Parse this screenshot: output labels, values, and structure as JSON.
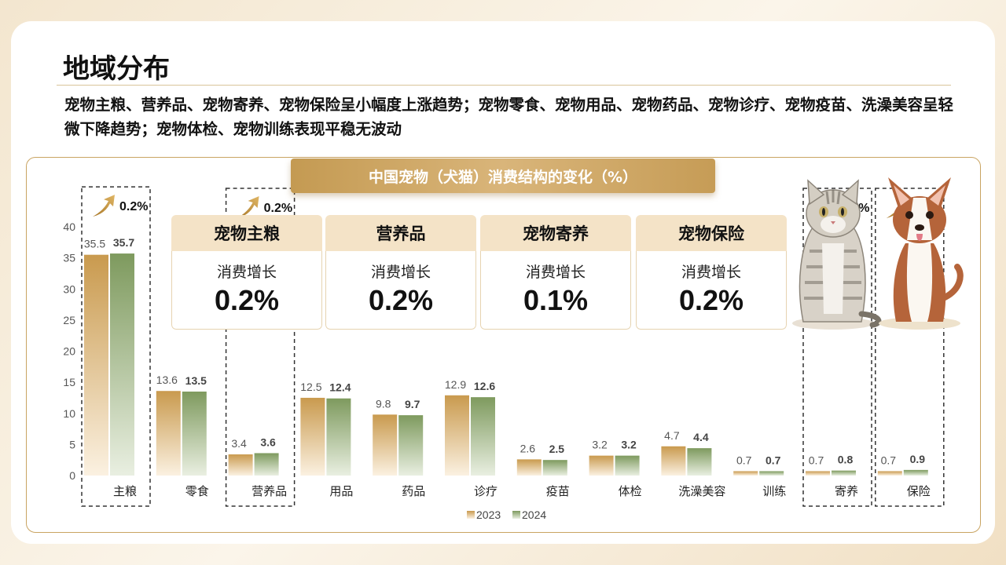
{
  "page": {
    "title": "地域分布",
    "subtitle": "宠物主粮、营养品、宠物寄养、宠物保险呈小幅度上涨趋势；宠物零食、宠物用品、宠物药品、宠物诊疗、宠物疫苗、洗澡美容呈轻微下降趋势；宠物体检、宠物训练表现平稳无波动"
  },
  "stat_cards": [
    {
      "title": "宠物主粮",
      "label": "消费增长",
      "value": "0.2%"
    },
    {
      "title": "营养品",
      "label": "消费增长",
      "value": "0.2%"
    },
    {
      "title": "宠物寄养",
      "label": "消费增长",
      "value": "0.1%"
    },
    {
      "title": "宠物保险",
      "label": "消费增长",
      "value": "0.2%"
    }
  ],
  "chart_data": {
    "type": "bar",
    "title": "中国宠物（犬猫）消费结构的变化（%）",
    "categories": [
      "主粮",
      "零食",
      "营养品",
      "用品",
      "药品",
      "诊疗",
      "疫苗",
      "体检",
      "洗澡美容",
      "训练",
      "寄养",
      "保险"
    ],
    "series": [
      {
        "name": "2023",
        "values": [
          35.5,
          13.6,
          3.4,
          12.5,
          9.8,
          12.9,
          2.6,
          3.2,
          4.7,
          0.7,
          0.7,
          0.7
        ],
        "labels": [
          "35.5",
          "13.6",
          "3.4",
          "12.5",
          "9.8",
          "12.9",
          "2.6",
          "3.2",
          "4.7",
          "0.7",
          "0.7",
          "0.7"
        ],
        "color": "#c99a4e"
      },
      {
        "name": "2024",
        "values": [
          35.7,
          13.5,
          3.6,
          12.4,
          9.7,
          12.6,
          2.5,
          3.2,
          4.4,
          0.7,
          0.8,
          0.9
        ],
        "labels": [
          "35.7",
          "13.5",
          "3.6",
          "12.4",
          "9.7",
          "12.6",
          "2.5",
          "3.2",
          "4.4",
          "0.7",
          "0.8",
          "0.9"
        ],
        "color": "#7e9a5e"
      }
    ],
    "ylim": [
      0,
      40
    ],
    "yticks": [
      "0",
      "5",
      "10",
      "15",
      "20",
      "25",
      "30",
      "35",
      "40"
    ],
    "legend": "bottom-center",
    "grid": false,
    "highlights": [
      {
        "category": "主粮",
        "growth": "0.2%"
      },
      {
        "category": "营养品",
        "growth": "0.2%"
      },
      {
        "category": "寄养",
        "growth": "0.1%"
      },
      {
        "category": "保险",
        "growth": "0.2%"
      }
    ]
  },
  "illustration": {
    "subjects": [
      "cat",
      "dog"
    ]
  },
  "colors": {
    "accent_gold": "#c99a4e",
    "accent_green": "#7e9a5e",
    "card_head": "#f4e3c7"
  }
}
